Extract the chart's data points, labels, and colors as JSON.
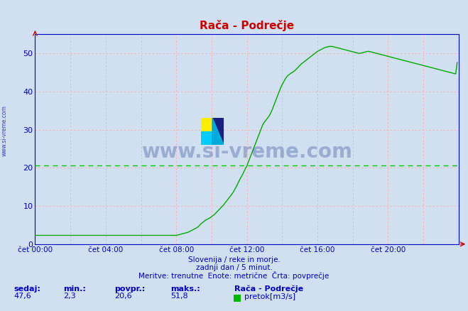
{
  "title": "Rača - Podrečje",
  "bg_color": "#d0e0f0",
  "plot_bg_color": "#d0e0f0",
  "line_color": "#00aa00",
  "avg_line_color": "#00cc00",
  "avg_value": 20.6,
  "x_tick_labels": [
    "čet 00:00",
    "čet 04:00",
    "čet 08:00",
    "čet 12:00",
    "čet 16:00",
    "čet 20:00"
  ],
  "x_tick_positions": [
    0,
    4,
    8,
    12,
    16,
    20
  ],
  "y_ticks": [
    0,
    10,
    20,
    30,
    40,
    50
  ],
  "subtitle1": "Slovenija / reke in morje.",
  "subtitle2": "zadnji dan / 5 minut.",
  "subtitle3": "Meritve: trenutne  Enote: metrične  Črta: povprečje",
  "footer_labels": [
    "sedaj:",
    "min.:",
    "povpr.:",
    "maks.:"
  ],
  "footer_values": [
    "47,6",
    "2,3",
    "20,6",
    "51,8"
  ],
  "legend_station": "Rača - Podrečje",
  "legend_label": "pretok[m3/s]",
  "legend_color": "#00bb00",
  "watermark_text": "www.si-vreme.com",
  "watermark_color": "#1a3a8a",
  "watermark_alpha": 0.3,
  "sidebar_text": "www.si-vreme.com",
  "data_x": [
    0.0,
    0.083,
    0.167,
    0.25,
    0.333,
    0.417,
    0.5,
    0.583,
    0.667,
    0.75,
    0.833,
    0.917,
    1.0,
    1.083,
    1.167,
    1.25,
    1.333,
    1.417,
    1.5,
    1.583,
    1.667,
    1.75,
    1.833,
    1.917,
    2.0,
    2.083,
    2.167,
    2.25,
    2.333,
    2.417,
    2.5,
    2.583,
    2.667,
    2.75,
    2.833,
    2.917,
    3.0,
    3.083,
    3.167,
    3.25,
    3.333,
    3.417,
    3.5,
    3.583,
    3.667,
    3.75,
    3.833,
    3.917,
    4.0,
    4.083,
    4.167,
    4.25,
    4.333,
    4.417,
    4.5,
    4.583,
    4.667,
    4.75,
    4.833,
    4.917,
    5.0,
    5.083,
    5.167,
    5.25,
    5.333,
    5.417,
    5.5,
    5.583,
    5.667,
    5.75,
    5.833,
    5.917,
    6.0,
    6.083,
    6.167,
    6.25,
    6.333,
    6.417,
    6.5,
    6.583,
    6.667,
    6.75,
    6.833,
    6.917,
    7.0,
    7.083,
    7.167,
    7.25,
    7.333,
    7.417,
    7.5,
    7.583,
    7.667,
    7.75,
    7.833,
    7.917,
    8.0,
    8.083,
    8.167,
    8.25,
    8.333,
    8.417,
    8.5,
    8.583,
    8.667,
    8.75,
    8.833,
    8.917,
    9.0,
    9.083,
    9.167,
    9.25,
    9.333,
    9.417,
    9.5,
    9.583,
    9.667,
    9.75,
    9.833,
    9.917,
    10.0,
    10.083,
    10.167,
    10.25,
    10.333,
    10.417,
    10.5,
    10.583,
    10.667,
    10.75,
    10.833,
    10.917,
    11.0,
    11.083,
    11.167,
    11.25,
    11.333,
    11.417,
    11.5,
    11.583,
    11.667,
    11.75,
    11.833,
    11.917,
    12.0,
    12.083,
    12.167,
    12.25,
    12.333,
    12.417,
    12.5,
    12.583,
    12.667,
    12.75,
    12.833,
    12.917,
    13.0,
    13.083,
    13.167,
    13.25,
    13.333,
    13.417,
    13.5,
    13.583,
    13.667,
    13.75,
    13.833,
    13.917,
    14.0,
    14.083,
    14.167,
    14.25,
    14.333,
    14.417,
    14.5,
    14.583,
    14.667,
    14.75,
    14.833,
    14.917,
    15.0,
    15.083,
    15.167,
    15.25,
    15.333,
    15.417,
    15.5,
    15.583,
    15.667,
    15.75,
    15.833,
    15.917,
    16.0,
    16.083,
    16.167,
    16.25,
    16.333,
    16.417,
    16.5,
    16.583,
    16.667,
    16.75,
    16.833,
    16.917,
    17.0,
    17.083,
    17.167,
    17.25,
    17.333,
    17.417,
    17.5,
    17.583,
    17.667,
    17.75,
    17.833,
    17.917,
    18.0,
    18.083,
    18.167,
    18.25,
    18.333,
    18.417,
    18.5,
    18.583,
    18.667,
    18.75,
    18.833,
    18.917,
    19.0,
    19.083,
    19.167,
    19.25,
    19.333,
    19.417,
    19.5,
    19.583,
    19.667,
    19.75,
    19.833,
    19.917,
    20.0,
    20.083,
    20.167,
    20.25,
    20.333,
    20.417,
    20.5,
    20.583,
    20.667,
    20.75,
    20.833,
    20.917,
    21.0,
    21.083,
    21.167,
    21.25,
    21.333,
    21.417,
    21.5,
    21.583,
    21.667,
    21.75,
    21.833,
    21.917,
    22.0,
    22.083,
    22.167,
    22.25,
    22.333,
    22.417,
    22.5,
    22.583,
    22.667,
    22.75,
    22.833,
    22.917,
    23.0,
    23.083,
    23.167,
    23.25,
    23.333,
    23.417,
    23.5,
    23.583,
    23.667,
    23.75,
    23.833,
    23.917
  ],
  "data_y": [
    2.3,
    2.3,
    2.3,
    2.3,
    2.3,
    2.3,
    2.3,
    2.3,
    2.3,
    2.3,
    2.3,
    2.3,
    2.3,
    2.3,
    2.3,
    2.3,
    2.3,
    2.3,
    2.3,
    2.3,
    2.3,
    2.3,
    2.3,
    2.3,
    2.3,
    2.3,
    2.3,
    2.3,
    2.3,
    2.3,
    2.3,
    2.3,
    2.3,
    2.3,
    2.3,
    2.3,
    2.3,
    2.3,
    2.3,
    2.3,
    2.3,
    2.3,
    2.3,
    2.3,
    2.3,
    2.3,
    2.3,
    2.3,
    2.3,
    2.3,
    2.3,
    2.3,
    2.3,
    2.3,
    2.3,
    2.3,
    2.3,
    2.3,
    2.3,
    2.3,
    2.3,
    2.3,
    2.3,
    2.3,
    2.3,
    2.3,
    2.3,
    2.3,
    2.3,
    2.3,
    2.3,
    2.3,
    2.3,
    2.3,
    2.3,
    2.3,
    2.3,
    2.3,
    2.3,
    2.3,
    2.3,
    2.3,
    2.3,
    2.3,
    2.3,
    2.3,
    2.3,
    2.3,
    2.3,
    2.3,
    2.3,
    2.3,
    2.3,
    2.3,
    2.3,
    2.3,
    2.3,
    2.4,
    2.5,
    2.6,
    2.7,
    2.8,
    2.9,
    3.0,
    3.1,
    3.3,
    3.5,
    3.7,
    3.9,
    4.1,
    4.3,
    4.6,
    5.0,
    5.4,
    5.7,
    6.0,
    6.3,
    6.5,
    6.7,
    6.9,
    7.2,
    7.5,
    7.8,
    8.2,
    8.6,
    9.0,
    9.4,
    9.8,
    10.2,
    10.7,
    11.2,
    11.7,
    12.2,
    12.7,
    13.2,
    13.8,
    14.5,
    15.2,
    16.0,
    16.8,
    17.5,
    18.2,
    19.0,
    19.8,
    20.5,
    21.5,
    22.5,
    23.5,
    24.5,
    25.5,
    26.5,
    27.5,
    28.5,
    29.5,
    30.5,
    31.5,
    32.0,
    32.5,
    33.0,
    33.5,
    34.2,
    35.0,
    36.0,
    37.0,
    38.0,
    39.0,
    40.0,
    41.0,
    41.8,
    42.5,
    43.2,
    43.8,
    44.2,
    44.5,
    44.8,
    45.0,
    45.3,
    45.6,
    46.0,
    46.4,
    46.8,
    47.2,
    47.5,
    47.8,
    48.1,
    48.4,
    48.7,
    49.0,
    49.3,
    49.6,
    49.9,
    50.2,
    50.5,
    50.7,
    50.9,
    51.1,
    51.3,
    51.5,
    51.6,
    51.7,
    51.8,
    51.8,
    51.8,
    51.7,
    51.6,
    51.5,
    51.4,
    51.3,
    51.2,
    51.1,
    51.0,
    50.9,
    50.8,
    50.7,
    50.6,
    50.5,
    50.4,
    50.3,
    50.2,
    50.1,
    50.0,
    50.0,
    50.1,
    50.2,
    50.3,
    50.4,
    50.5,
    50.5,
    50.4,
    50.3,
    50.2,
    50.1,
    50.0,
    49.9,
    49.8,
    49.7,
    49.6,
    49.5,
    49.4,
    49.3,
    49.2,
    49.1,
    49.0,
    48.9,
    48.8,
    48.7,
    48.6,
    48.5,
    48.4,
    48.3,
    48.2,
    48.1,
    48.0,
    47.9,
    47.8,
    47.7,
    47.6,
    47.5,
    47.4,
    47.3,
    47.2,
    47.1,
    47.0,
    46.9,
    46.8,
    46.7,
    46.6,
    46.5,
    46.4,
    46.3,
    46.2,
    46.1,
    46.0,
    45.9,
    45.8,
    45.7,
    45.6,
    45.5,
    45.4,
    45.3,
    45.2,
    45.1,
    45.0,
    44.9,
    44.8,
    44.7,
    44.6,
    47.6
  ]
}
